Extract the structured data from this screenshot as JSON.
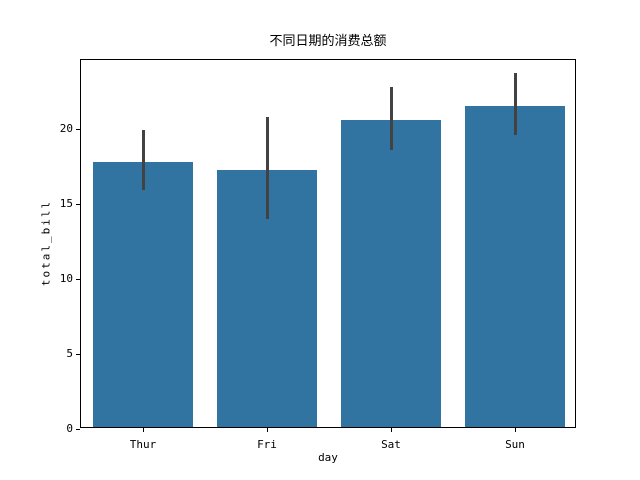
{
  "figure": {
    "background": "#ffffff"
  },
  "colors": {
    "bar": "#3274a1",
    "error_bar": "#424242",
    "text": "#000000",
    "spine": "#000000"
  },
  "chart_data": {
    "type": "bar",
    "title": "不同日期的消费总额",
    "xlabel": "day",
    "ylabel": "total_bill",
    "categories": [
      "Thur",
      "Fri",
      "Sat",
      "Sun"
    ],
    "values": [
      17.68,
      17.15,
      20.44,
      21.41
    ],
    "error_bars_low": [
      15.8,
      13.9,
      18.5,
      19.5
    ],
    "error_bars_high": [
      19.8,
      20.7,
      22.7,
      23.6
    ],
    "ylim": [
      0,
      24.6
    ],
    "yticks": [
      0,
      5,
      10,
      15,
      20
    ],
    "bar_width_fraction": 0.8,
    "grid": false,
    "legend": "none"
  }
}
